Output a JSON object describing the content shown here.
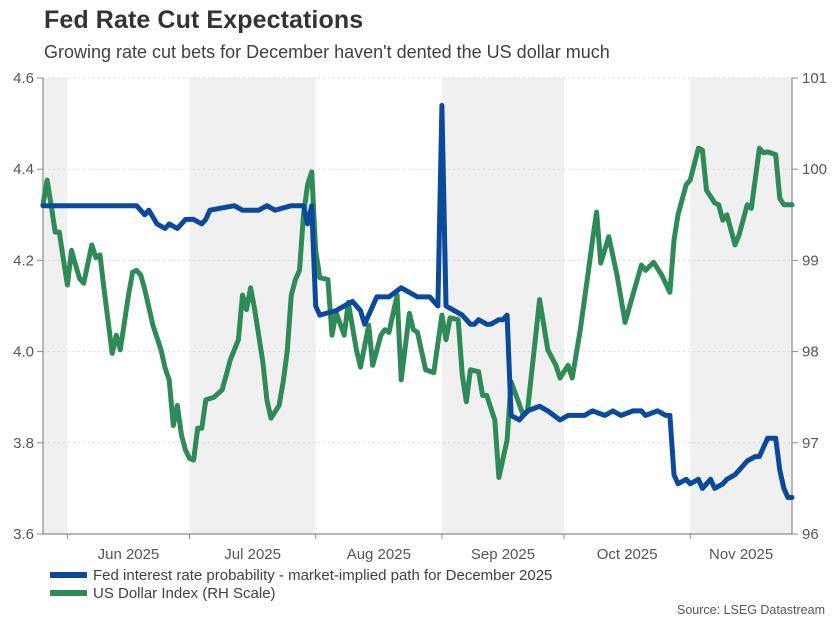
{
  "title": "Fed Rate Cut Expectations",
  "subtitle": "Growing rate cut bets for December haven't dented the US dollar much",
  "source": "Source: LSEG Datastream",
  "colors": {
    "fed": "#0b4a9a",
    "dxy": "#2e8b57",
    "band": "#f0f0f0",
    "axis": "#8c8c8c",
    "grid": "#d9d9d9"
  },
  "chart_data": {
    "type": "line",
    "title": "Fed Rate Cut Expectations",
    "subtitle": "Growing rate cut bets for December haven't dented the US dollar much",
    "xlabel": "",
    "ylabel": "",
    "y2label": "",
    "xlim": [
      "2025-05-26",
      "2025-11-26"
    ],
    "ylim": [
      3.6,
      4.6
    ],
    "y2lim": [
      96,
      101
    ],
    "yticks": [
      "4.6",
      "4.4",
      "4.2",
      "4.0",
      "3.8",
      "3.6"
    ],
    "y2ticks": [
      "101",
      "100",
      "99",
      "98",
      "97",
      "96"
    ],
    "xtick_labels": [
      {
        "date": "2025-06-01",
        "label": "Jun 2025"
      },
      {
        "date": "2025-07-01",
        "label": "Jul 2025"
      },
      {
        "date": "2025-08-01",
        "label": "Aug 2025"
      },
      {
        "date": "2025-09-01",
        "label": "Sep 2025"
      },
      {
        "date": "2025-10-01",
        "label": "Oct 2025"
      },
      {
        "date": "2025-11-01",
        "label": "Nov 2025"
      }
    ],
    "shaded_months": [
      [
        "2025-05-26",
        "2025-06-01"
      ],
      [
        "2025-07-01",
        "2025-08-01"
      ],
      [
        "2025-09-01",
        "2025-10-01"
      ],
      [
        "2025-11-01",
        "2025-11-26"
      ]
    ],
    "grid": "horizontal dotted",
    "legend_position": "bottom-left",
    "series": [
      {
        "name": "Fed interest rate probability - market-implied path for December 2025",
        "axis": "left",
        "points": [
          [
            "2025-05-26",
            4.32
          ],
          [
            "2025-05-28",
            4.32
          ],
          [
            "2025-05-30",
            4.32
          ],
          [
            "2025-06-03",
            4.32
          ],
          [
            "2025-06-06",
            4.32
          ],
          [
            "2025-06-16",
            4.32
          ],
          [
            "2025-06-18",
            4.32
          ],
          [
            "2025-06-20",
            4.3
          ],
          [
            "2025-06-21",
            4.31
          ],
          [
            "2025-06-23",
            4.28
          ],
          [
            "2025-06-25",
            4.27
          ],
          [
            "2025-06-26",
            4.28
          ],
          [
            "2025-06-28",
            4.27
          ],
          [
            "2025-06-30",
            4.29
          ],
          [
            "2025-07-02",
            4.29
          ],
          [
            "2025-07-04",
            4.28
          ],
          [
            "2025-07-05",
            4.29
          ],
          [
            "2025-07-06",
            4.31
          ],
          [
            "2025-07-12",
            4.32
          ],
          [
            "2025-07-14",
            4.31
          ],
          [
            "2025-07-18",
            4.31
          ],
          [
            "2025-07-20",
            4.32
          ],
          [
            "2025-07-22",
            4.31
          ],
          [
            "2025-07-26",
            4.32
          ],
          [
            "2025-07-29",
            4.32
          ],
          [
            "2025-07-30",
            4.28
          ],
          [
            "2025-07-31",
            4.32
          ],
          [
            "2025-08-01",
            4.1
          ],
          [
            "2025-08-02",
            4.08
          ],
          [
            "2025-08-06",
            4.09
          ],
          [
            "2025-08-10",
            4.11
          ],
          [
            "2025-08-12",
            4.09
          ],
          [
            "2025-08-13",
            4.06
          ],
          [
            "2025-08-16",
            4.12
          ],
          [
            "2025-08-19",
            4.12
          ],
          [
            "2025-08-22",
            4.14
          ],
          [
            "2025-08-26",
            4.12
          ],
          [
            "2025-08-29",
            4.12
          ],
          [
            "2025-08-31",
            4.1
          ],
          [
            "2025-09-01",
            4.54
          ],
          [
            "2025-09-02",
            4.1
          ],
          [
            "2025-09-04",
            4.09
          ],
          [
            "2025-09-06",
            4.08
          ],
          [
            "2025-09-08",
            4.06
          ],
          [
            "2025-09-09",
            4.06
          ],
          [
            "2025-09-10",
            4.07
          ],
          [
            "2025-09-12",
            4.06
          ],
          [
            "2025-09-13",
            4.06
          ],
          [
            "2025-09-15",
            4.07
          ],
          [
            "2025-09-16",
            4.07
          ],
          [
            "2025-09-17",
            4.08
          ],
          [
            "2025-09-18",
            3.86
          ],
          [
            "2025-09-20",
            3.85
          ],
          [
            "2025-09-22",
            3.87
          ],
          [
            "2025-09-25",
            3.88
          ],
          [
            "2025-09-27",
            3.87
          ],
          [
            "2025-09-30",
            3.85
          ],
          [
            "2025-10-02",
            3.86
          ],
          [
            "2025-10-04",
            3.86
          ],
          [
            "2025-10-06",
            3.86
          ],
          [
            "2025-10-08",
            3.87
          ],
          [
            "2025-10-11",
            3.86
          ],
          [
            "2025-10-13",
            3.87
          ],
          [
            "2025-10-15",
            3.86
          ],
          [
            "2025-10-18",
            3.87
          ],
          [
            "2025-10-20",
            3.87
          ],
          [
            "2025-10-21",
            3.86
          ],
          [
            "2025-10-24",
            3.87
          ],
          [
            "2025-10-26",
            3.86
          ],
          [
            "2025-10-27",
            3.86
          ],
          [
            "2025-10-28",
            3.73
          ],
          [
            "2025-10-29",
            3.71
          ],
          [
            "2025-10-31",
            3.72
          ],
          [
            "2025-11-01",
            3.71
          ],
          [
            "2025-11-03",
            3.72
          ],
          [
            "2025-11-04",
            3.7
          ],
          [
            "2025-11-06",
            3.72
          ],
          [
            "2025-11-07",
            3.7
          ],
          [
            "2025-11-09",
            3.71
          ],
          [
            "2025-11-10",
            3.72
          ],
          [
            "2025-11-12",
            3.73
          ],
          [
            "2025-11-13",
            3.74
          ],
          [
            "2025-11-15",
            3.76
          ],
          [
            "2025-11-17",
            3.77
          ],
          [
            "2025-11-18",
            3.77
          ],
          [
            "2025-11-20",
            3.81
          ],
          [
            "2025-11-22",
            3.81
          ],
          [
            "2025-11-23",
            3.74
          ],
          [
            "2025-11-24",
            3.7
          ],
          [
            "2025-11-25",
            3.68
          ],
          [
            "2025-11-26",
            3.68
          ]
        ]
      },
      {
        "name": "US Dollar Index (RH Scale)",
        "axis": "right",
        "points": [
          [
            "2025-05-26",
            99.61
          ],
          [
            "2025-05-27",
            99.88
          ],
          [
            "2025-05-28",
            99.61
          ],
          [
            "2025-05-29",
            99.31
          ],
          [
            "2025-05-30",
            99.31
          ],
          [
            "2025-05-31",
            99.01
          ],
          [
            "2025-06-01",
            98.73
          ],
          [
            "2025-06-02",
            99.11
          ],
          [
            "2025-06-03",
            98.95
          ],
          [
            "2025-06-04",
            98.8
          ],
          [
            "2025-06-05",
            98.75
          ],
          [
            "2025-06-07",
            99.17
          ],
          [
            "2025-06-08",
            99.03
          ],
          [
            "2025-06-09",
            99.06
          ],
          [
            "2025-06-10",
            98.68
          ],
          [
            "2025-06-12",
            97.98
          ],
          [
            "2025-06-13",
            98.18
          ],
          [
            "2025-06-14",
            98.02
          ],
          [
            "2025-06-16",
            98.62
          ],
          [
            "2025-06-17",
            98.87
          ],
          [
            "2025-06-18",
            98.89
          ],
          [
            "2025-06-19",
            98.84
          ],
          [
            "2025-06-20",
            98.68
          ],
          [
            "2025-06-22",
            98.29
          ],
          [
            "2025-06-24",
            98.02
          ],
          [
            "2025-06-25",
            97.82
          ],
          [
            "2025-06-26",
            97.69
          ],
          [
            "2025-06-27",
            97.19
          ],
          [
            "2025-06-28",
            97.41
          ],
          [
            "2025-06-29",
            97.09
          ],
          [
            "2025-06-30",
            96.92
          ],
          [
            "2025-07-01",
            96.83
          ],
          [
            "2025-07-02",
            96.81
          ],
          [
            "2025-07-03",
            97.16
          ],
          [
            "2025-07-04",
            97.16
          ],
          [
            "2025-07-05",
            97.47
          ],
          [
            "2025-07-07",
            97.5
          ],
          [
            "2025-07-09",
            97.58
          ],
          [
            "2025-07-10",
            97.74
          ],
          [
            "2025-07-11",
            97.91
          ],
          [
            "2025-07-13",
            98.13
          ],
          [
            "2025-07-14",
            98.62
          ],
          [
            "2025-07-15",
            98.46
          ],
          [
            "2025-07-16",
            98.7
          ],
          [
            "2025-07-17",
            98.46
          ],
          [
            "2025-07-19",
            97.89
          ],
          [
            "2025-07-20",
            97.47
          ],
          [
            "2025-07-21",
            97.27
          ],
          [
            "2025-07-23",
            97.41
          ],
          [
            "2025-07-24",
            97.67
          ],
          [
            "2025-07-25",
            98.0
          ],
          [
            "2025-07-26",
            98.62
          ],
          [
            "2025-07-27",
            98.79
          ],
          [
            "2025-07-28",
            98.89
          ],
          [
            "2025-07-29",
            99.5
          ],
          [
            "2025-07-30",
            99.83
          ],
          [
            "2025-07-31",
            99.97
          ],
          [
            "2025-08-01",
            99.11
          ],
          [
            "2025-08-02",
            98.81
          ],
          [
            "2025-08-04",
            98.79
          ],
          [
            "2025-08-05",
            98.18
          ],
          [
            "2025-08-06",
            98.43
          ],
          [
            "2025-08-08",
            98.18
          ],
          [
            "2025-08-09",
            98.54
          ],
          [
            "2025-08-11",
            98.02
          ],
          [
            "2025-08-12",
            97.83
          ],
          [
            "2025-08-14",
            98.29
          ],
          [
            "2025-08-15",
            97.85
          ],
          [
            "2025-08-17",
            98.18
          ],
          [
            "2025-08-18",
            98.24
          ],
          [
            "2025-08-19",
            98.21
          ],
          [
            "2025-08-21",
            98.62
          ],
          [
            "2025-08-22",
            97.69
          ],
          [
            "2025-08-24",
            98.42
          ],
          [
            "2025-08-25",
            98.24
          ],
          [
            "2025-08-26",
            98.21
          ],
          [
            "2025-08-28",
            97.8
          ],
          [
            "2025-08-30",
            97.77
          ],
          [
            "2025-09-01",
            98.4
          ],
          [
            "2025-09-02",
            98.13
          ],
          [
            "2025-09-03",
            98.37
          ],
          [
            "2025-09-05",
            98.35
          ],
          [
            "2025-09-06",
            97.74
          ],
          [
            "2025-09-07",
            97.45
          ],
          [
            "2025-09-08",
            97.8
          ],
          [
            "2025-09-10",
            97.78
          ],
          [
            "2025-09-11",
            97.52
          ],
          [
            "2025-09-12",
            97.52
          ],
          [
            "2025-09-14",
            97.25
          ],
          [
            "2025-09-15",
            96.62
          ],
          [
            "2025-09-17",
            97.03
          ],
          [
            "2025-09-18",
            97.67
          ],
          [
            "2025-09-21",
            97.3
          ],
          [
            "2025-09-22",
            97.34
          ],
          [
            "2025-09-25",
            98.57
          ],
          [
            "2025-09-27",
            98.02
          ],
          [
            "2025-09-29",
            97.85
          ],
          [
            "2025-09-30",
            97.71
          ],
          [
            "2025-10-02",
            97.85
          ],
          [
            "2025-10-03",
            97.71
          ],
          [
            "2025-10-05",
            98.24
          ],
          [
            "2025-10-07",
            98.89
          ],
          [
            "2025-10-08",
            99.22
          ],
          [
            "2025-10-09",
            99.53
          ],
          [
            "2025-10-10",
            98.97
          ],
          [
            "2025-10-12",
            99.26
          ],
          [
            "2025-10-14",
            98.84
          ],
          [
            "2025-10-16",
            98.32
          ],
          [
            "2025-10-17",
            98.48
          ],
          [
            "2025-10-20",
            98.95
          ],
          [
            "2025-10-21",
            98.89
          ],
          [
            "2025-10-23",
            98.98
          ],
          [
            "2025-10-25",
            98.84
          ],
          [
            "2025-10-27",
            98.65
          ],
          [
            "2025-10-28",
            99.22
          ],
          [
            "2025-10-29",
            99.5
          ],
          [
            "2025-10-31",
            99.83
          ],
          [
            "2025-11-01",
            99.88
          ],
          [
            "2025-11-03",
            100.23
          ],
          [
            "2025-11-04",
            100.21
          ],
          [
            "2025-11-05",
            99.77
          ],
          [
            "2025-11-07",
            99.63
          ],
          [
            "2025-11-08",
            99.61
          ],
          [
            "2025-11-09",
            99.44
          ],
          [
            "2025-11-10",
            99.5
          ],
          [
            "2025-11-12",
            99.17
          ],
          [
            "2025-11-13",
            99.28
          ],
          [
            "2025-11-15",
            99.61
          ],
          [
            "2025-11-16",
            99.57
          ],
          [
            "2025-11-18",
            100.23
          ],
          [
            "2025-11-19",
            100.18
          ],
          [
            "2025-11-20",
            100.19
          ],
          [
            "2025-11-22",
            100.16
          ],
          [
            "2025-11-23",
            99.68
          ],
          [
            "2025-11-24",
            99.61
          ],
          [
            "2025-11-26",
            99.61
          ]
        ]
      }
    ]
  },
  "legend": {
    "items": [
      {
        "label": "Fed interest rate probability - market-implied path for December 2025"
      },
      {
        "label": "US Dollar Index (RH Scale)"
      }
    ]
  }
}
